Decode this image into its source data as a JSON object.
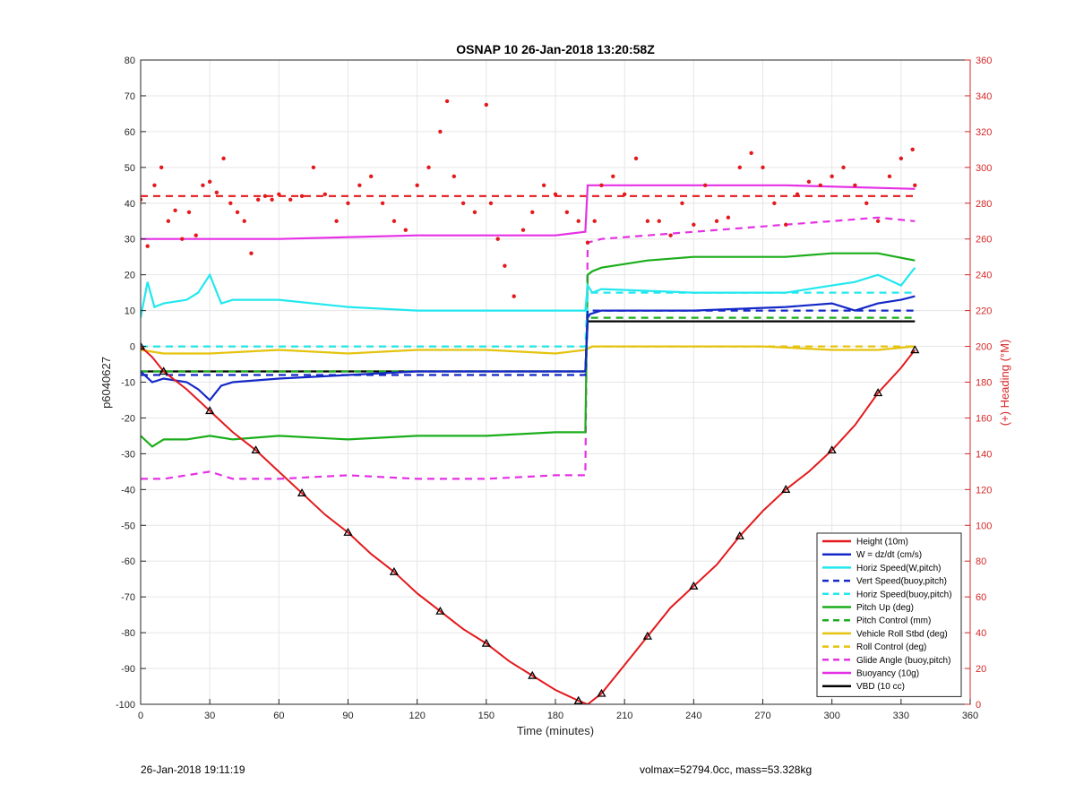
{
  "chart_data": {
    "type": "line",
    "title": "OSNAP 10 26-Jan-2018 13:20:58Z",
    "xlabel": "Time (minutes)",
    "ylabel": "p6040627",
    "y2label": "(+) Heading (°M)",
    "xlim": [
      0,
      360
    ],
    "ylim": [
      -100,
      80
    ],
    "y2lim": [
      0,
      360
    ],
    "xticks": [
      0,
      30,
      60,
      90,
      120,
      150,
      180,
      210,
      240,
      270,
      300,
      330,
      360
    ],
    "yticks": [
      -100,
      -90,
      -80,
      -70,
      -60,
      -50,
      -40,
      -30,
      -20,
      -10,
      0,
      10,
      20,
      30,
      40,
      50,
      60,
      70,
      80
    ],
    "y2ticks": [
      0,
      20,
      40,
      60,
      80,
      100,
      120,
      140,
      160,
      180,
      200,
      220,
      240,
      260,
      280,
      300,
      320,
      340,
      360
    ],
    "grid": true,
    "legend_position": "bottom-right",
    "series": [
      {
        "name": "Height (10m)",
        "color": "#e3191c",
        "style": "solid",
        "axis": "left",
        "x": [
          0,
          5,
          10,
          20,
          30,
          40,
          50,
          60,
          70,
          80,
          90,
          100,
          110,
          120,
          130,
          140,
          150,
          160,
          170,
          180,
          190,
          194,
          200,
          210,
          220,
          230,
          240,
          250,
          260,
          270,
          280,
          290,
          300,
          310,
          320,
          330,
          336
        ],
        "y": [
          0,
          -3,
          -7,
          -12,
          -18,
          -24,
          -29,
          -35,
          -41,
          -47,
          -52,
          -58,
          -63,
          -69,
          -74,
          -79,
          -83,
          -88,
          -92,
          -96,
          -99,
          -100,
          -97,
          -89,
          -81,
          -73,
          -67,
          -61,
          -53,
          -46,
          -40,
          -35,
          -29,
          -22,
          -13,
          -6,
          -1
        ]
      },
      {
        "name": "W = dz/dt (cm/s)",
        "color": "#1428c8",
        "style": "solid",
        "axis": "left",
        "x": [
          0,
          5,
          10,
          20,
          25,
          30,
          35,
          40,
          60,
          90,
          120,
          150,
          180,
          193,
          194,
          195,
          200,
          240,
          280,
          300,
          310,
          320,
          330,
          336
        ],
        "y": [
          -7,
          -10,
          -9,
          -10,
          -12,
          -15,
          -11,
          -10,
          -9,
          -8,
          -7,
          -7,
          -7,
          -7,
          8,
          9,
          10,
          10,
          11,
          12,
          10,
          12,
          13,
          14
        ]
      },
      {
        "name": "Horiz Speed(W,pitch)",
        "color": "#22e8ee",
        "style": "solid",
        "axis": "left",
        "x": [
          0,
          3,
          6,
          10,
          20,
          25,
          30,
          35,
          40,
          60,
          90,
          120,
          150,
          180,
          193,
          194,
          196,
          200,
          240,
          280,
          300,
          310,
          320,
          330,
          336
        ],
        "y": [
          8,
          18,
          11,
          12,
          13,
          15,
          20,
          12,
          13,
          13,
          11,
          10,
          10,
          10,
          10,
          17,
          15,
          16,
          15,
          15,
          17,
          18,
          20,
          17,
          22
        ]
      },
      {
        "name": "Vert Speed(buoy,pitch)",
        "color": "#1428c8",
        "style": "dashed",
        "axis": "left",
        "x": [
          0,
          193,
          194,
          336
        ],
        "y": [
          -8,
          -8,
          10,
          10
        ]
      },
      {
        "name": "Horiz Speed(buoy,pitch)",
        "color": "#22e8ee",
        "style": "dashed",
        "axis": "left",
        "x": [
          0,
          193,
          194,
          336
        ],
        "y": [
          0,
          0,
          15,
          15
        ]
      },
      {
        "name": "Pitch Up (deg)",
        "color": "#1bae1b",
        "style": "solid",
        "axis": "left",
        "x": [
          0,
          5,
          10,
          20,
          30,
          40,
          60,
          90,
          120,
          150,
          180,
          193,
          194,
          196,
          200,
          220,
          240,
          280,
          300,
          320,
          336
        ],
        "y": [
          -25,
          -28,
          -26,
          -26,
          -25,
          -26,
          -25,
          -26,
          -25,
          -25,
          -24,
          -24,
          20,
          21,
          22,
          24,
          25,
          25,
          26,
          26,
          24
        ]
      },
      {
        "name": "Pitch Control (mm)",
        "color": "#1bae1b",
        "style": "dashed",
        "axis": "left",
        "x": [
          0,
          193,
          194,
          336
        ],
        "y": [
          -7,
          -7,
          8,
          8
        ]
      },
      {
        "name": "Vehicle Roll Stbd (deg)",
        "color": "#e5c30e",
        "style": "solid",
        "axis": "left",
        "x": [
          0,
          10,
          30,
          60,
          90,
          120,
          150,
          180,
          193,
          196,
          220,
          240,
          270,
          300,
          320,
          336
        ],
        "y": [
          -1,
          -2,
          -2,
          -1,
          -2,
          -1,
          -1,
          -2,
          -1,
          0,
          0,
          0,
          0,
          -1,
          -1,
          0
        ]
      },
      {
        "name": "Roll Control (deg)",
        "color": "#e5c30e",
        "style": "dashed",
        "axis": "left",
        "x": [
          0,
          193,
          194,
          336
        ],
        "y": [
          0,
          0,
          0,
          0
        ]
      },
      {
        "name": "Glide Angle (buoy,pitch)",
        "color": "#e531e5",
        "style": "dashed",
        "axis": "left",
        "x": [
          0,
          10,
          20,
          30,
          40,
          60,
          90,
          120,
          150,
          180,
          193,
          194,
          200,
          220,
          240,
          260,
          280,
          300,
          320,
          336
        ],
        "y": [
          -37,
          -37,
          -36,
          -35,
          -37,
          -37,
          -36,
          -37,
          -37,
          -36,
          -36,
          29,
          30,
          31,
          32,
          33,
          34,
          35,
          36,
          35
        ]
      },
      {
        "name": "Buoyancy (10g)",
        "color": "#e531e5",
        "style": "solid",
        "axis": "left",
        "x": [
          0,
          60,
          120,
          180,
          193,
          194,
          200,
          240,
          280,
          336
        ],
        "y": [
          30,
          30,
          31,
          31,
          32,
          45,
          45,
          45,
          45,
          44
        ]
      },
      {
        "name": "VBD (10 cc)",
        "color": "#000000",
        "style": "solid",
        "axis": "left",
        "x": [
          0,
          193,
          194,
          336
        ],
        "y": [
          -7,
          -7,
          7,
          7
        ]
      }
    ],
    "heading": {
      "color": "#e3191c",
      "axis": "right",
      "x": [
        0,
        3,
        6,
        9,
        12,
        15,
        18,
        21,
        24,
        27,
        30,
        33,
        36,
        39,
        42,
        45,
        48,
        51,
        54,
        57,
        60,
        65,
        70,
        75,
        80,
        85,
        90,
        95,
        100,
        105,
        110,
        115,
        120,
        125,
        130,
        133,
        136,
        140,
        145,
        150,
        152,
        155,
        158,
        162,
        166,
        170,
        175,
        180,
        185,
        190,
        194,
        197,
        200,
        205,
        210,
        215,
        220,
        225,
        230,
        235,
        240,
        245,
        250,
        255,
        260,
        265,
        270,
        275,
        280,
        285,
        290,
        295,
        300,
        305,
        310,
        315,
        320,
        325,
        330,
        335,
        336
      ],
      "y": [
        282,
        256,
        290,
        300,
        270,
        276,
        260,
        275,
        262,
        290,
        292,
        286,
        305,
        280,
        275,
        270,
        252,
        282,
        284,
        282,
        285,
        282,
        284,
        300,
        285,
        270,
        280,
        290,
        295,
        280,
        270,
        265,
        290,
        300,
        320,
        337,
        295,
        280,
        275,
        335,
        280,
        260,
        245,
        228,
        265,
        275,
        290,
        285,
        275,
        270,
        258,
        270,
        290,
        295,
        285,
        305,
        270,
        270,
        262,
        280,
        268,
        290,
        270,
        272,
        300,
        308,
        300,
        280,
        268,
        285,
        292,
        290,
        295,
        300,
        290,
        280,
        270,
        295,
        305,
        310,
        290
      ]
    },
    "heading_target": {
      "color": "#e3191c",
      "style": "dashed",
      "axis": "right",
      "value": 284
    },
    "markers_on": "Height (10m)"
  },
  "footer": {
    "left": "26-Jan-2018 19:11:19",
    "right": "volmax=52794.0cc, mass=53.328kg"
  }
}
